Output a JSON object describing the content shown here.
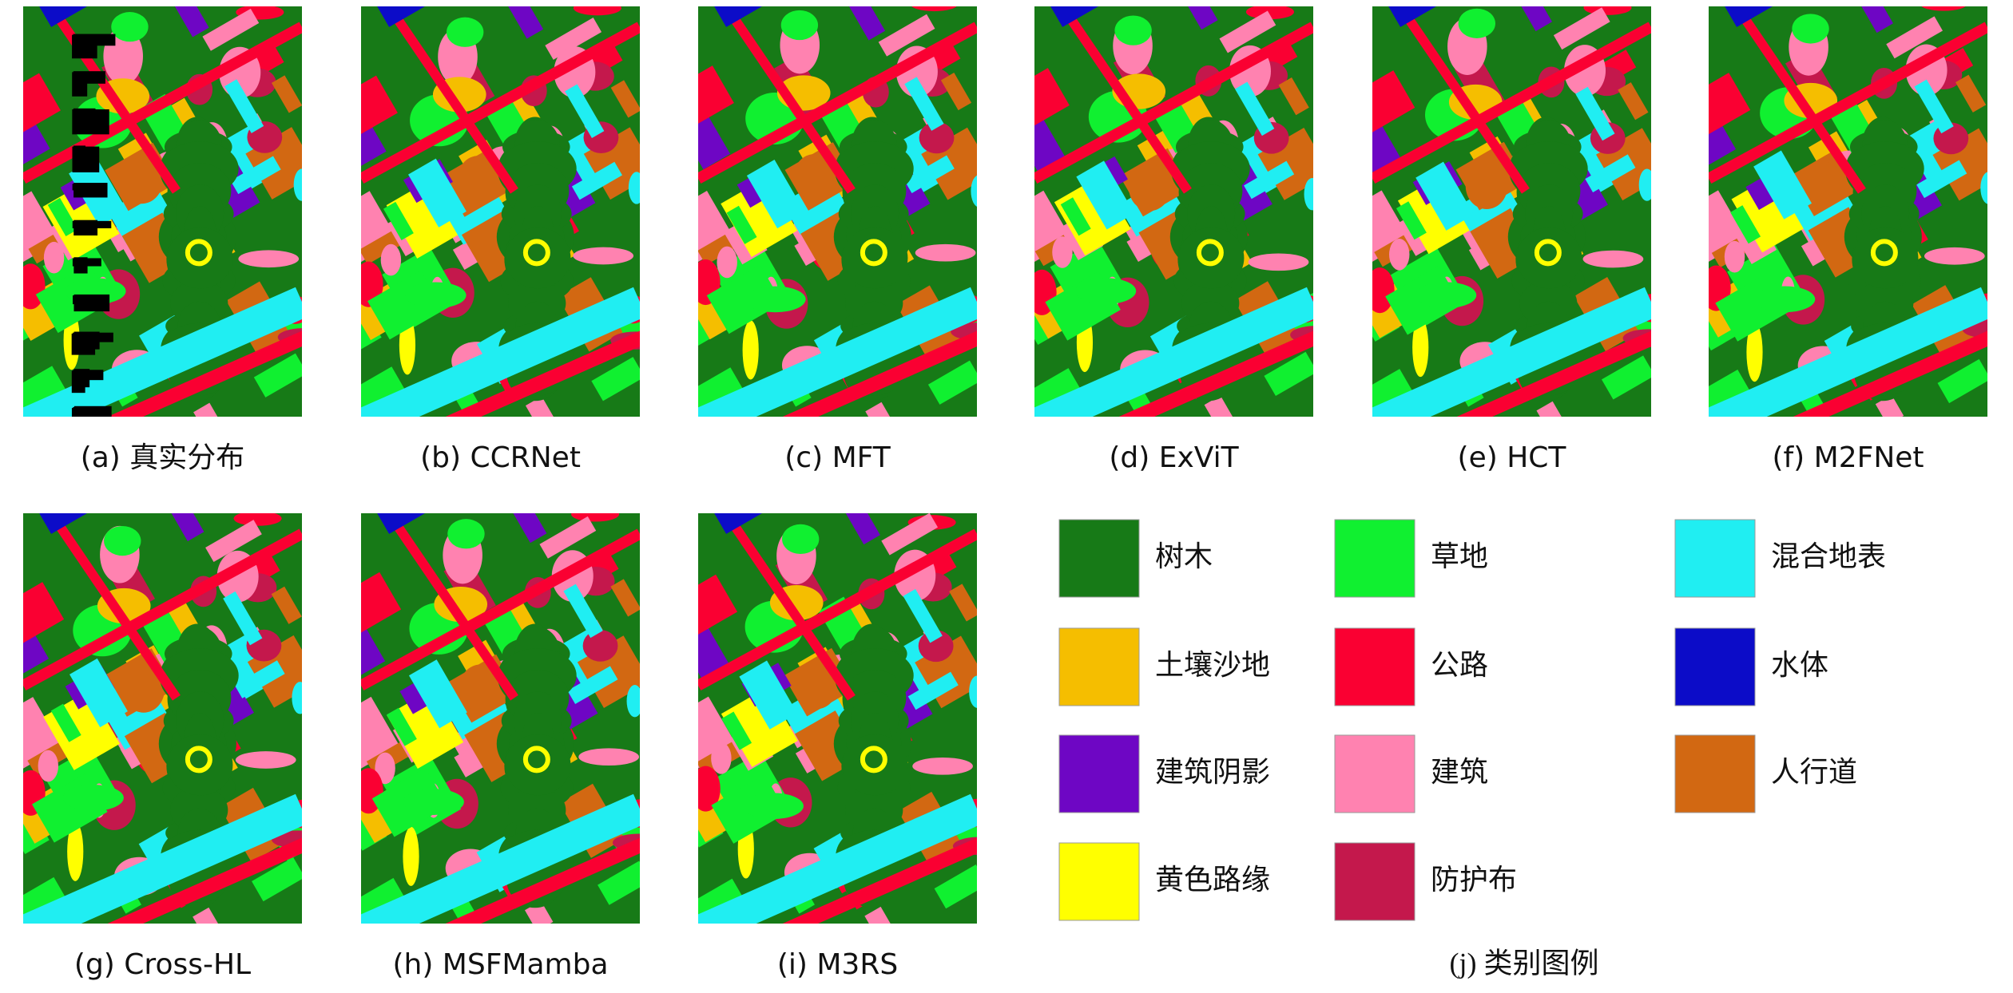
{
  "panels": [
    {
      "caption": "(a) 真实分布"
    },
    {
      "caption": "(b) CCRNet"
    },
    {
      "caption": "(c) MFT"
    },
    {
      "caption": "(d) ExViT"
    },
    {
      "caption": "(e) HCT"
    },
    {
      "caption": "(f) M2FNet"
    },
    {
      "caption": "(g) Cross-HL"
    },
    {
      "caption": "(h) MSFMamba"
    },
    {
      "caption": "(i) M3RS"
    }
  ],
  "legend": {
    "caption": "(j) 类别图例",
    "items": [
      {
        "label": "树木",
        "color": "#177a17"
      },
      {
        "label": "草地",
        "color": "#10f030"
      },
      {
        "label": "混合地表",
        "color": "#20eef2"
      },
      {
        "label": "土壤沙地",
        "color": "#f5be00"
      },
      {
        "label": "公路",
        "color": "#fa0032"
      },
      {
        "label": "水体",
        "color": "#0c0cc8"
      },
      {
        "label": "建筑阴影",
        "color": "#6e06c4"
      },
      {
        "label": "建筑",
        "color": "#ff82b0"
      },
      {
        "label": "人行道",
        "color": "#d26812"
      },
      {
        "label": "黄色路缘",
        "color": "#ffff00"
      },
      {
        "label": "防护布",
        "color": "#c4184c"
      }
    ]
  }
}
